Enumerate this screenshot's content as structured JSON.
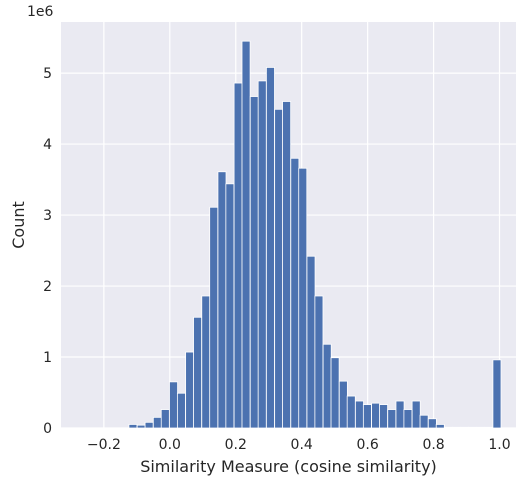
{
  "chart_data": {
    "type": "bar",
    "subtype": "histogram",
    "xlabel": "Similarity Measure (cosine similarity)",
    "ylabel": "Count",
    "y_scale_label": "1e6",
    "xlim": [
      -0.33,
      1.05
    ],
    "ylim": [
      0,
      5.72
    ],
    "x_ticks": [
      "−0.2",
      "0.0",
      "0.2",
      "0.4",
      "0.6",
      "0.8",
      "1.0"
    ],
    "x_tick_values": [
      -0.2,
      0.0,
      0.2,
      0.4,
      0.6,
      0.8,
      1.0
    ],
    "y_ticks": [
      "0",
      "1",
      "2",
      "3",
      "4",
      "5"
    ],
    "y_tick_values": [
      0,
      1,
      2,
      3,
      4,
      5
    ],
    "grid": true,
    "style": {
      "background": "#EAEAF2",
      "bar_color": "#4C72B0",
      "grid_color": "#FFFFFF"
    },
    "bin_width": 0.02453,
    "bins": [
      {
        "x0": -0.124,
        "value": 0.05
      },
      {
        "x0": -0.099,
        "value": 0.04
      },
      {
        "x0": -0.075,
        "value": 0.08
      },
      {
        "x0": -0.05,
        "value": 0.15
      },
      {
        "x0": -0.026,
        "value": 0.26
      },
      {
        "x0": -0.001,
        "value": 0.65
      },
      {
        "x0": 0.023,
        "value": 0.49
      },
      {
        "x0": 0.048,
        "value": 1.07
      },
      {
        "x0": 0.072,
        "value": 1.56
      },
      {
        "x0": 0.097,
        "value": 1.86
      },
      {
        "x0": 0.121,
        "value": 3.11
      },
      {
        "x0": 0.146,
        "value": 3.61
      },
      {
        "x0": 0.17,
        "value": 3.44
      },
      {
        "x0": 0.195,
        "value": 4.86
      },
      {
        "x0": 0.219,
        "value": 5.45
      },
      {
        "x0": 0.244,
        "value": 4.67
      },
      {
        "x0": 0.268,
        "value": 4.89
      },
      {
        "x0": 0.293,
        "value": 5.08
      },
      {
        "x0": 0.318,
        "value": 4.49
      },
      {
        "x0": 0.342,
        "value": 4.6
      },
      {
        "x0": 0.367,
        "value": 3.8
      },
      {
        "x0": 0.391,
        "value": 3.66
      },
      {
        "x0": 0.416,
        "value": 2.42
      },
      {
        "x0": 0.44,
        "value": 1.86
      },
      {
        "x0": 0.465,
        "value": 1.18
      },
      {
        "x0": 0.489,
        "value": 0.99
      },
      {
        "x0": 0.514,
        "value": 0.66
      },
      {
        "x0": 0.538,
        "value": 0.45
      },
      {
        "x0": 0.563,
        "value": 0.38
      },
      {
        "x0": 0.587,
        "value": 0.33
      },
      {
        "x0": 0.612,
        "value": 0.35
      },
      {
        "x0": 0.636,
        "value": 0.33
      },
      {
        "x0": 0.661,
        "value": 0.26
      },
      {
        "x0": 0.686,
        "value": 0.38
      },
      {
        "x0": 0.71,
        "value": 0.26
      },
      {
        "x0": 0.735,
        "value": 0.38
      },
      {
        "x0": 0.759,
        "value": 0.18
      },
      {
        "x0": 0.784,
        "value": 0.13
      },
      {
        "x0": 0.808,
        "value": 0.05
      },
      {
        "x0": 0.833,
        "value": 0.01
      },
      {
        "x0": 0.857,
        "value": 0.01
      },
      {
        "x0": 0.882,
        "value": 0.01
      },
      {
        "x0": 0.906,
        "value": 0.01
      },
      {
        "x0": 0.931,
        "value": 0.01
      },
      {
        "x0": 0.955,
        "value": 0.01
      },
      {
        "x0": 0.98,
        "value": 0.96
      }
    ]
  }
}
